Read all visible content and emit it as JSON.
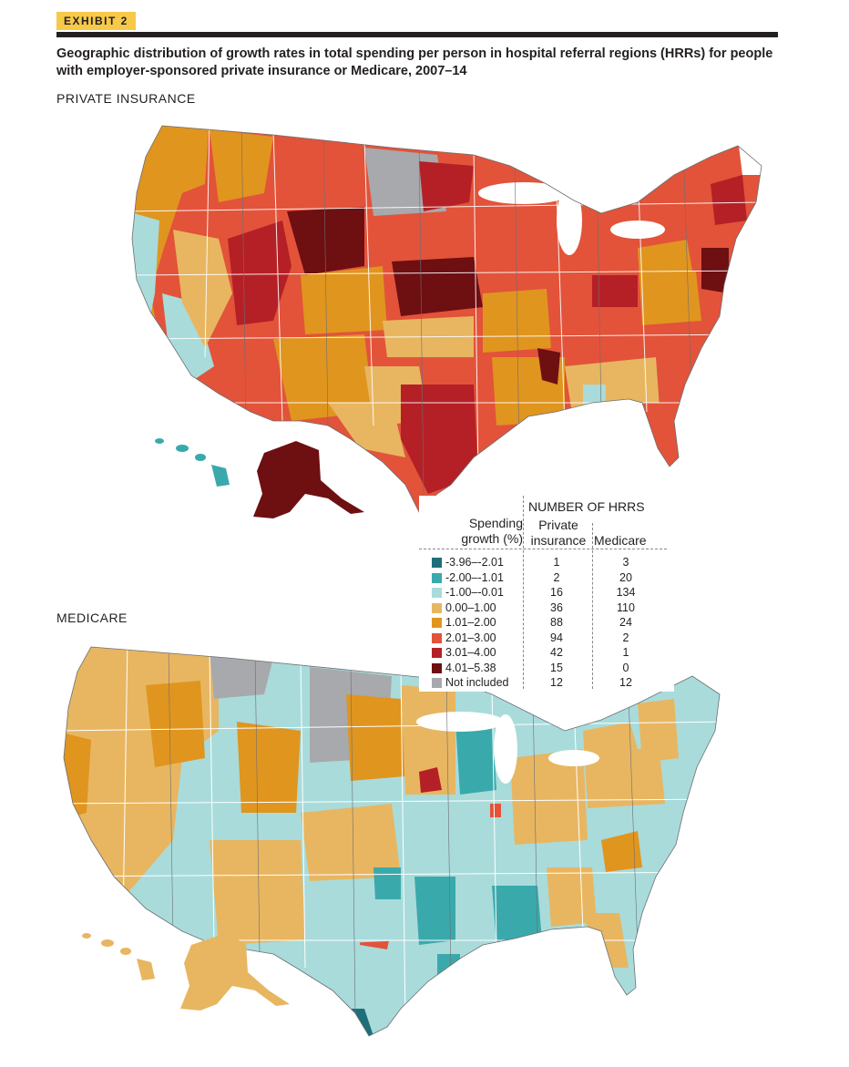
{
  "exhibit": "EXHIBIT 2",
  "title": "Geographic distribution of growth rates in total spending per person in hospital referral regions (HRRs) for people with employer-sponsored private insurance or Medicare, 2007–14",
  "maps": {
    "private": {
      "label": "PRIVATE INSURANCE"
    },
    "medicare": {
      "label": "MEDICARE"
    }
  },
  "legend": {
    "number_heading": "NUMBER OF HRRS",
    "growth_heading_1": "Spending",
    "growth_heading_2": "growth (%)",
    "private_heading_1": "Private",
    "private_heading_2": "insurance",
    "medicare_heading": "Medicare",
    "rows": [
      {
        "range": "-3.96–-2.01",
        "color": "#1f6f7a",
        "private": "1",
        "medicare": "3"
      },
      {
        "range": "-2.00–-1.01",
        "color": "#3aa9ac",
        "private": "2",
        "medicare": "20"
      },
      {
        "range": "-1.00–-0.01",
        "color": "#a9dbdb",
        "private": "16",
        "medicare": "134"
      },
      {
        "range": "0.00–1.00",
        "color": "#e8b661",
        "private": "36",
        "medicare": "110"
      },
      {
        "range": "1.01–2.00",
        "color": "#e0951f",
        "private": "88",
        "medicare": "24"
      },
      {
        "range": "2.01–3.00",
        "color": "#e2533a",
        "private": "94",
        "medicare": "2"
      },
      {
        "range": "3.01–4.00",
        "color": "#b52026",
        "private": "42",
        "medicare": "1"
      },
      {
        "range": "4.01–5.38",
        "color": "#6e0f12",
        "private": "15",
        "medicare": "0"
      },
      {
        "range": "Not included",
        "color": "#a7a9ac",
        "private": "12",
        "medicare": "12"
      }
    ]
  }
}
